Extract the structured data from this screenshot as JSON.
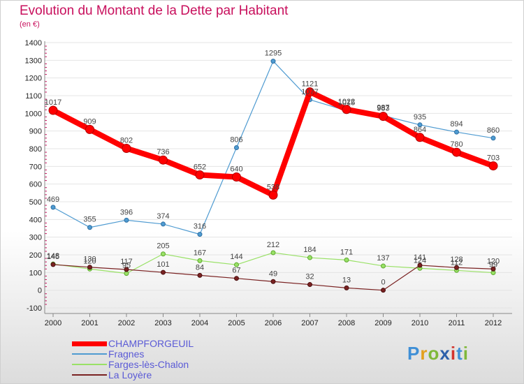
{
  "title": "Evolution du Montant de la Dette par Habitant",
  "subtitle": "(en €)",
  "logo": {
    "text": "Proxiti",
    "letter_colors": [
      "#3f8fd6",
      "#e3a01c",
      "#7fb83a",
      "#2c5faa",
      "#d2342e",
      "#3f8fd6",
      "#7fb83a"
    ]
  },
  "chart_data": {
    "type": "line",
    "x": [
      "2000",
      "2001",
      "2002",
      "2003",
      "2004",
      "2005",
      "2006",
      "2007",
      "2008",
      "2009",
      "2010",
      "2011",
      "2012"
    ],
    "yticks": [
      "1400",
      "1300",
      "1200",
      "1100",
      "1000",
      "900",
      "800",
      "700",
      "600",
      "500",
      "400",
      "300",
      "200",
      "100",
      "0",
      "-100"
    ],
    "ylim": [
      -100,
      1400
    ],
    "series": [
      {
        "name": "CHAMPFORGEUIL",
        "color": "#ff0000",
        "values": [
          1017,
          909,
          802,
          736,
          652,
          640,
          538,
          1121,
          1022,
          983,
          864,
          780,
          703
        ],
        "labels": [
          "1017",
          "909",
          "802",
          "736",
          "652",
          "640",
          "538",
          "1121",
          "1022",
          "983",
          "864",
          "780",
          "703"
        ]
      },
      {
        "name": "Fragnes",
        "color": "#4f9bd1",
        "values": [
          469,
          355,
          396,
          374,
          316,
          806,
          1295,
          1077,
          1015,
          987,
          935,
          894,
          860
        ],
        "labels": [
          "469",
          "355",
          "396",
          "374",
          "316",
          "806",
          "1295",
          "1077",
          "1015",
          "987",
          "935",
          "894",
          "860"
        ]
      },
      {
        "name": "Farges-lès-Chalon",
        "color": "#99e166",
        "values": [
          148,
          120,
          95,
          205,
          167,
          144,
          212,
          184,
          171,
          137,
          124,
          112,
          99
        ],
        "labels": [
          "148",
          "120",
          "95",
          "205",
          "167",
          "144",
          "212",
          "184",
          "171",
          "137",
          "124",
          "112",
          "99"
        ]
      },
      {
        "name": "La Loyère",
        "color": "#7a2222",
        "values": [
          145,
          130,
          117,
          101,
          84,
          67,
          49,
          32,
          13,
          0,
          141,
          128,
          120
        ],
        "labels": [
          "145",
          "130",
          "117",
          "101",
          "84",
          "67",
          "49",
          "32",
          "13",
          "0",
          "141",
          "128",
          "120"
        ]
      }
    ]
  }
}
